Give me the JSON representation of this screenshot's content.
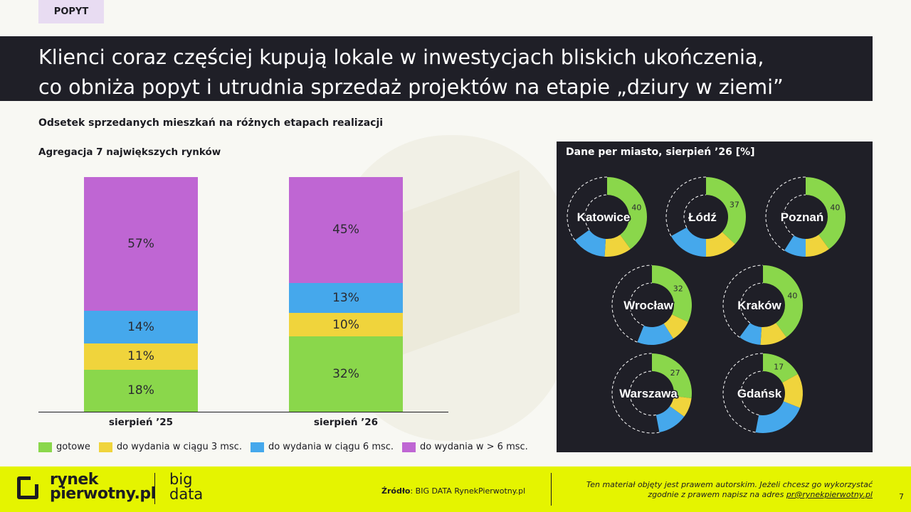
{
  "header": {
    "tag": "POPYT",
    "title_line1": "Klienci coraz częściej kupują lokale w inwestycjach bliskich ukończenia,",
    "title_line2": "co obniża popyt i utrudnia sprzedaż projektów na etapie „dziury w ziemi”"
  },
  "subtitle": "Odsetek sprzedanych mieszkań na różnych etapach realizacji",
  "chart_data": [
    {
      "type": "bar",
      "stacked": true,
      "title": "Agregacja 7 największych rynków",
      "categories": [
        "sierpień ’25",
        "sierpień ’26"
      ],
      "series": [
        {
          "name": "gotowe",
          "color": "#8ad74b",
          "values": [
            18,
            32
          ],
          "labels": [
            "18%",
            "32%"
          ]
        },
        {
          "name": "do wydania w ciągu 3 msc.",
          "color": "#f0d43c",
          "values": [
            11,
            10
          ],
          "labels": [
            "11%",
            "10%"
          ]
        },
        {
          "name": "do wydania w ciągu 6 msc.",
          "color": "#45a8ec",
          "values": [
            14,
            13
          ],
          "labels": [
            "14%",
            "13%"
          ]
        },
        {
          "name": "do wydania w > 6 msc.",
          "color": "#bf66d3",
          "values": [
            57,
            45
          ],
          "labels": [
            "57%",
            "45%"
          ]
        }
      ],
      "ylim": [
        0,
        100
      ]
    },
    {
      "type": "pie",
      "variant": "donut",
      "title": "Dane per miasto, sierpień ’26 [%]",
      "series_colors": {
        "gotowe": "#8ad74b",
        "do wydania w ciągu 3 msc.": "#f0d43c",
        "do wydania w ciągu 6 msc.": "#45a8ec",
        "do wydania w > 6 msc.": "#1f1f27"
      },
      "cities": [
        {
          "name": "Katowice",
          "values": [
            40,
            11,
            14,
            35
          ],
          "label": "40"
        },
        {
          "name": "Łódź",
          "values": [
            37,
            13,
            17,
            33
          ],
          "label": "37"
        },
        {
          "name": "Poznań",
          "values": [
            40,
            10,
            9,
            41
          ],
          "label": "40"
        },
        {
          "name": "Wrocław",
          "values": [
            32,
            9,
            15,
            44
          ],
          "label": "32"
        },
        {
          "name": "Kraków",
          "values": [
            40,
            11,
            9,
            40
          ],
          "label": "40"
        },
        {
          "name": "Warszawa",
          "values": [
            27,
            8,
            12,
            53
          ],
          "label": "27"
        },
        {
          "name": "Gdańsk",
          "values": [
            17,
            14,
            22,
            47
          ],
          "label": "17"
        }
      ]
    }
  ],
  "footer": {
    "brand_line1": "rynek",
    "brand_line2": "pierwotny.pl",
    "big_line1": "big",
    "big_line2": "data",
    "source_label": "Źródło",
    "source_text": ": BIG DATA RynekPierwotny.pl",
    "legal_line1": "Ten materiał objęty jest prawem autorskim. Jeżeli chcesz go wykorzystać",
    "legal_line2": "zgodnie z prawem napisz na adres ",
    "legal_mail": "pr@rynekpierwotny.pl",
    "page": "7"
  }
}
